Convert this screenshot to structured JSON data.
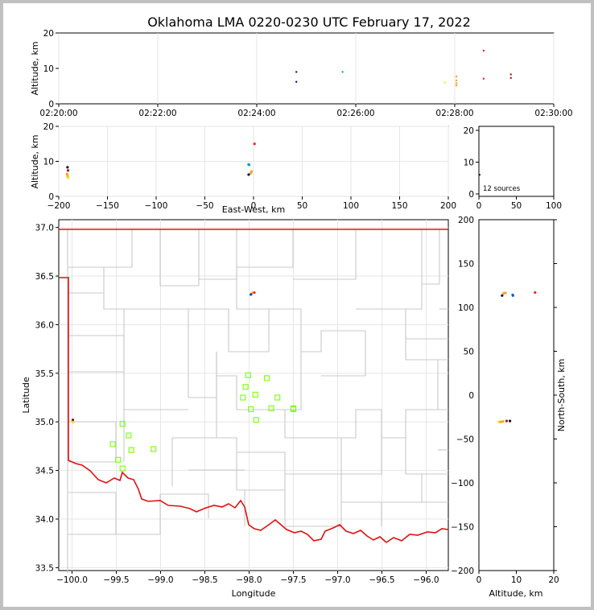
{
  "title": "Oklahoma LMA 0220-0230 UTC February 17, 2022",
  "source_count_text": "12 sources",
  "colors": {
    "state_border": "#e01010",
    "county_lines": "#c8c8c8",
    "stations": "#80ff20"
  },
  "chart_data": [
    {
      "id": "time_altitude",
      "type": "scatter",
      "xlabel": "",
      "ylabel": "Altitude, km",
      "xlim": [
        "02:20:00",
        "02:30:00"
      ],
      "ylim": [
        0,
        20
      ],
      "xticks": [
        "02:20:00",
        "02:22:00",
        "02:24:00",
        "02:26:00",
        "02:28:00",
        "02:30:00"
      ],
      "yticks": [
        "0",
        "10",
        "20"
      ],
      "points": [
        {
          "x": "02:24:48",
          "y": 9.0,
          "color": "#101070"
        },
        {
          "x": "02:24:48",
          "y": 6.2,
          "color": "#101070"
        },
        {
          "x": "02:25:44",
          "y": 9.0,
          "color": "#18a0b8"
        },
        {
          "x": "02:27:48",
          "y": 6.0,
          "color": "#ffe020"
        },
        {
          "x": "02:28:02",
          "y": 7.7,
          "color": "#ffa020"
        },
        {
          "x": "02:28:02",
          "y": 6.6,
          "color": "#ffa020"
        },
        {
          "x": "02:28:02",
          "y": 5.8,
          "color": "#ffa020"
        },
        {
          "x": "02:28:02",
          "y": 5.2,
          "color": "#ffa020"
        },
        {
          "x": "02:28:35",
          "y": 15.0,
          "color": "#ff2020"
        },
        {
          "x": "02:28:35",
          "y": 7.1,
          "color": "#ff2020"
        },
        {
          "x": "02:29:08",
          "y": 8.3,
          "color": "#a01818"
        },
        {
          "x": "02:29:08",
          "y": 7.3,
          "color": "#a01818"
        }
      ]
    },
    {
      "id": "ew_altitude",
      "type": "scatter",
      "xlabel": "East-West, km",
      "ylabel": "Altitude, km",
      "xlim": [
        -200,
        200
      ],
      "ylim": [
        0,
        20
      ],
      "xticks": [
        "−200",
        "−150",
        "−100",
        "−50",
        "0",
        "50",
        "100",
        "150",
        "200"
      ],
      "yticks": [
        "0",
        "10",
        "20"
      ],
      "points": [
        {
          "x": -191,
          "y": 8.3,
          "color": "#101010"
        },
        {
          "x": -190.5,
          "y": 7.4,
          "color": "#a01818"
        },
        {
          "x": -191.5,
          "y": 6.4,
          "color": "#ffa020"
        },
        {
          "x": -191,
          "y": 5.8,
          "color": "#ffa020"
        },
        {
          "x": -190.5,
          "y": 5.3,
          "color": "#ffe020"
        },
        {
          "x": -5,
          "y": 9.1,
          "color": "#1050e0"
        },
        {
          "x": -4.5,
          "y": 9.0,
          "color": "#18a0b8"
        },
        {
          "x": -2,
          "y": 7.1,
          "color": "#ffa020"
        },
        {
          "x": -3,
          "y": 6.6,
          "color": "#ffa020"
        },
        {
          "x": -5,
          "y": 6.2,
          "color": "#101070"
        },
        {
          "x": 1,
          "y": 15.0,
          "color": "#ff2020"
        }
      ]
    },
    {
      "id": "histogram",
      "type": "bar",
      "xlim": [
        0,
        100
      ],
      "ylim": [
        0,
        20
      ],
      "xticks": [
        "0",
        "50",
        "100"
      ],
      "yticks": [
        "0",
        "10",
        "20"
      ],
      "values": []
    },
    {
      "id": "plan_view",
      "type": "scatter",
      "xlabel": "Longitude",
      "ylabel": "Latitude",
      "xlim": [
        -100.15,
        -95.75
      ],
      "ylim": [
        33.47,
        37.08
      ],
      "xticks": [
        "−100.0",
        "−99.5",
        "−99.0",
        "−98.5",
        "−98.0",
        "−97.5",
        "−97.0",
        "−96.5",
        "−96.0"
      ],
      "yticks": [
        "33.5",
        "34.0",
        "34.5",
        "35.0",
        "35.5",
        "36.0",
        "36.5",
        "37.0"
      ],
      "points": [
        {
          "x": -99.99,
          "y": 35.02,
          "color": "#101010"
        },
        {
          "x": -99.99,
          "y": 35.01,
          "color": "#a01818"
        },
        {
          "x": -99.99,
          "y": 35.0,
          "color": "#ffa020"
        },
        {
          "x": -99.99,
          "y": 34.995,
          "color": "#ffe020"
        },
        {
          "x": -97.98,
          "y": 36.31,
          "color": "#101070"
        },
        {
          "x": -97.975,
          "y": 36.315,
          "color": "#1050e0"
        },
        {
          "x": -97.96,
          "y": 36.33,
          "color": "#ffa020"
        },
        {
          "x": -97.94,
          "y": 36.33,
          "color": "#ff2020"
        }
      ],
      "stations": [
        {
          "x": -98.01,
          "y": 35.48
        },
        {
          "x": -97.8,
          "y": 35.45
        },
        {
          "x": -98.04,
          "y": 35.36
        },
        {
          "x": -97.93,
          "y": 35.28
        },
        {
          "x": -98.07,
          "y": 35.25
        },
        {
          "x": -97.68,
          "y": 35.25
        },
        {
          "x": -97.98,
          "y": 35.13
        },
        {
          "x": -97.75,
          "y": 35.14
        },
        {
          "x": -97.5,
          "y": 35.13
        },
        {
          "x": -97.5,
          "y": 35.14
        },
        {
          "x": -97.92,
          "y": 35.02
        },
        {
          "x": -99.43,
          "y": 34.98
        },
        {
          "x": -99.36,
          "y": 34.86
        },
        {
          "x": -99.54,
          "y": 34.77
        },
        {
          "x": -99.08,
          "y": 34.72
        },
        {
          "x": -99.33,
          "y": 34.71
        },
        {
          "x": -99.48,
          "y": 34.61
        },
        {
          "x": -99.43,
          "y": 34.52
        }
      ]
    },
    {
      "id": "altitude_ns",
      "type": "scatter",
      "xlabel": "Altitude, km",
      "ylabel": "North-South, km",
      "xlim": [
        0,
        20
      ],
      "ylim": [
        -200,
        200
      ],
      "xticks": [
        "0",
        "10",
        "20"
      ],
      "yticks": [
        "−200",
        "−150",
        "−100",
        "−50",
        "0",
        "50",
        "100",
        "150",
        "200"
      ],
      "points": [
        {
          "x": 6.2,
          "y": 113.5,
          "color": "#101070"
        },
        {
          "x": 6.6,
          "y": 116,
          "color": "#ffa020"
        },
        {
          "x": 7.1,
          "y": 116.5,
          "color": "#ffa020"
        },
        {
          "x": 9.0,
          "y": 114.5,
          "color": "#18a0b8"
        },
        {
          "x": 9.1,
          "y": 113.5,
          "color": "#1050e0"
        },
        {
          "x": 15.0,
          "y": 117,
          "color": "#ff2020"
        },
        {
          "x": 5.3,
          "y": -30.5,
          "color": "#ffe020"
        },
        {
          "x": 5.8,
          "y": -30.5,
          "color": "#ffa020"
        },
        {
          "x": 6.4,
          "y": -30,
          "color": "#ffa020"
        },
        {
          "x": 7.4,
          "y": -29.5,
          "color": "#a01818"
        },
        {
          "x": 8.3,
          "y": -29.5,
          "color": "#101010"
        }
      ]
    }
  ]
}
